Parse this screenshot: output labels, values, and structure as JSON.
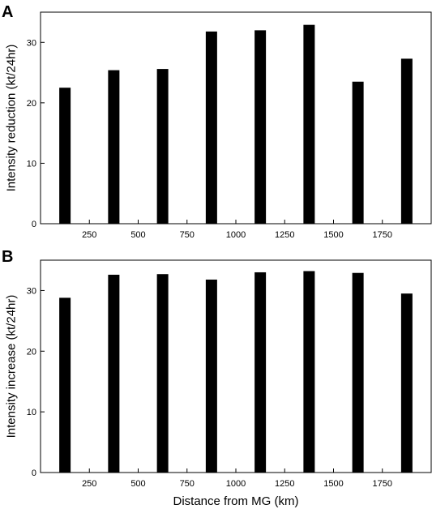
{
  "chart_data": [
    {
      "panel_label": "A",
      "type": "bar",
      "x": [
        125,
        375,
        625,
        875,
        1125,
        1375,
        1625,
        1875
      ],
      "values": [
        22.5,
        25.4,
        25.6,
        31.8,
        32.0,
        32.9,
        23.5,
        27.3
      ],
      "ylabel": "Intensity reduction (kt/24hr)",
      "xlabel": "",
      "xlim": [
        0,
        2000
      ],
      "ylim": [
        0,
        35
      ],
      "xticks": [
        250,
        500,
        750,
        1000,
        1250,
        1500,
        1750
      ],
      "yticks": [
        0,
        10,
        20,
        30
      ],
      "bar_color": "#000000"
    },
    {
      "panel_label": "B",
      "type": "bar",
      "x": [
        125,
        375,
        625,
        875,
        1125,
        1375,
        1625,
        1875
      ],
      "values": [
        28.8,
        32.6,
        32.7,
        31.8,
        33.0,
        33.2,
        32.9,
        29.5
      ],
      "ylabel": "Intensity increase (kt/24hr)",
      "xlabel": "Distance from MG (km)",
      "xlim": [
        0,
        2000
      ],
      "ylim": [
        0,
        35
      ],
      "xticks": [
        250,
        500,
        750,
        1000,
        1250,
        1500,
        1750
      ],
      "yticks": [
        0,
        10,
        20,
        30
      ],
      "bar_color": "#000000"
    }
  ]
}
